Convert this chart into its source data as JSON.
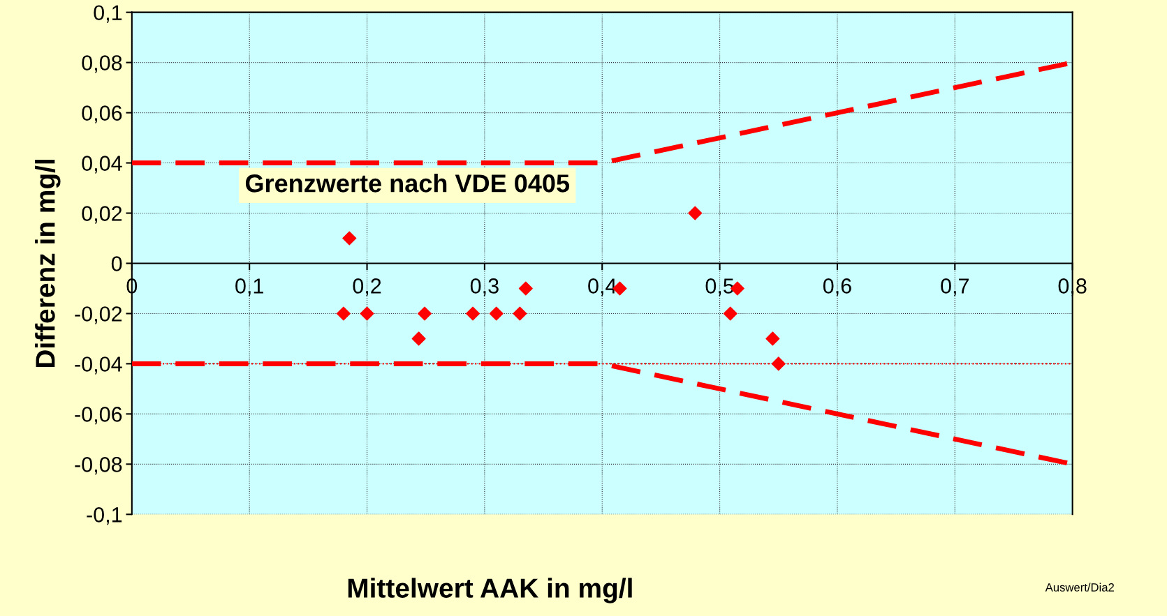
{
  "chart_data": {
    "type": "scatter",
    "xlabel": "Mittelwert AAK in mg/l",
    "ylabel": "Differenz in mg/l",
    "annotations": [
      "Grenzwerte nach VDE 0405",
      "Auswert/Dia2"
    ],
    "series": [
      {
        "color": "#ff0000",
        "marker": "diamond",
        "x": [
          0.185,
          0.18,
          0.2,
          0.244,
          0.249,
          0.29,
          0.31,
          0.33,
          0.335,
          0.415,
          0.479,
          0.509,
          0.515,
          0.545,
          0.55
        ],
        "values": [
          0.01,
          -0.02,
          -0.02,
          -0.03,
          -0.02,
          -0.02,
          -0.02,
          -0.02,
          -0.01,
          -0.01,
          0.02,
          -0.02,
          -0.01,
          -0.03,
          -0.04
        ]
      },
      {
        "type": "line",
        "color": "#ff0000",
        "line_style": "dashed",
        "x": [
          0,
          0.4,
          0.8
        ],
        "values": [
          0.04,
          0.04,
          0.08
        ]
      },
      {
        "type": "line",
        "color": "#ff0000",
        "line_style": "dashed",
        "x": [
          0,
          0.4,
          0.8
        ],
        "values": [
          -0.04,
          -0.04,
          -0.08
        ]
      }
    ],
    "ref_lines": [
      {
        "axis": "y",
        "value": -0.04,
        "color": "#ff0000",
        "line_style": "dotted"
      }
    ],
    "xlim": [
      0,
      0.8
    ],
    "ylim": [
      -0.1,
      0.1
    ],
    "xticks": [
      0,
      {
        "value": 0.1,
        "label": "0,1"
      },
      {
        "value": 0.2,
        "label": "0,2"
      },
      {
        "value": 0.3,
        "label": "0,3"
      },
      {
        "value": 0.4,
        "label": "0,4"
      },
      {
        "value": 0.5,
        "label": "0,5"
      },
      {
        "value": 0.6,
        "label": "0,6"
      },
      {
        "value": 0.7,
        "label": "0,7"
      },
      {
        "value": 0.8,
        "label": "0,8"
      }
    ],
    "yticks": [
      {
        "value": -0.1,
        "label": "-0,1"
      },
      {
        "value": -0.08,
        "label": "-0,08"
      },
      {
        "value": -0.06,
        "label": "-0,06"
      },
      {
        "value": -0.04,
        "label": "-0,04"
      },
      {
        "value": -0.02,
        "label": "-0,02"
      },
      0,
      {
        "value": 0.02,
        "label": "0,02"
      },
      {
        "value": 0.04,
        "label": "0,04"
      },
      {
        "value": 0.06,
        "label": "0,06"
      },
      {
        "value": 0.08,
        "label": "0,08"
      },
      {
        "value": 0.1,
        "label": "0,1"
      }
    ],
    "grid": true
  }
}
